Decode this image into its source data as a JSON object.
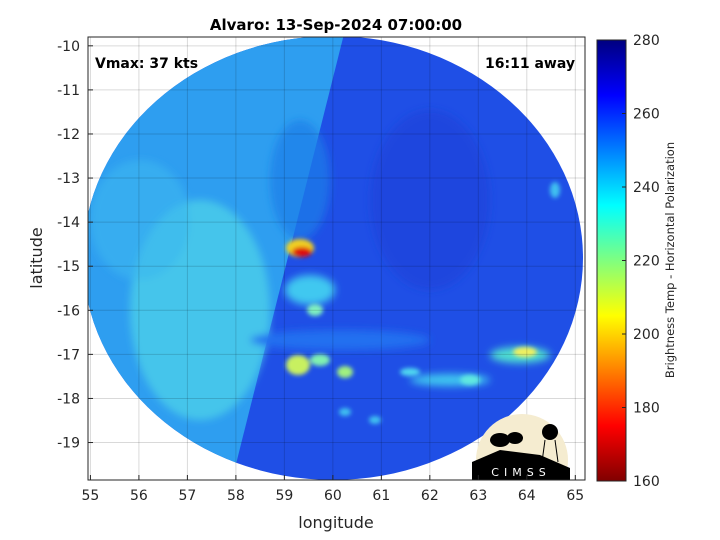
{
  "chart_data": {
    "type": "heatmap",
    "title": "Alvaro: 13-Sep-2024 07:00:00",
    "xlabel": "longitude",
    "ylabel": "latitude",
    "xlim": [
      54.95,
      65.2
    ],
    "ylim": [
      -19.85,
      -9.8
    ],
    "xticks": [
      55,
      56,
      57,
      58,
      59,
      60,
      61,
      62,
      63,
      64,
      65
    ],
    "yticks": [
      -10,
      -11,
      -12,
      -13,
      -14,
      -15,
      -16,
      -17,
      -18,
      -19
    ],
    "grid": true,
    "annotations": {
      "left": "Vmax: 37 kts",
      "right": "16:11 away"
    },
    "colorbar": {
      "label": "Brightness Temp - Horizontal Polarization",
      "range": [
        160,
        280
      ],
      "ticks": [
        160,
        180,
        200,
        220,
        240,
        260,
        280
      ],
      "colormap": "jet"
    },
    "features": [
      {
        "name": "cold core",
        "lon": 59.3,
        "lat": -14.8,
        "value": 175
      },
      {
        "name": "rainband",
        "lon": 59.3,
        "lat": -17.2,
        "value": 215
      },
      {
        "name": "rainband",
        "lon": 64.0,
        "lat": -16.9,
        "value": 215
      }
    ]
  },
  "logo": {
    "text": "CIMSS"
  }
}
